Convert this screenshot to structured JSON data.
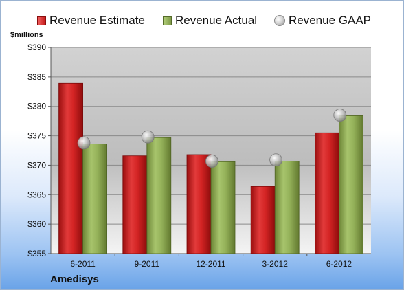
{
  "legend": {
    "estimate": "Revenue Estimate",
    "actual": "Revenue Actual",
    "gaap": "Revenue GAAP"
  },
  "units_label": "$millions",
  "company": "Amedisys",
  "colors": {
    "estimate": "#c41a1a",
    "actual": "#8aa54f",
    "gaap": "#bdbdbd"
  },
  "chart_data": {
    "type": "bar",
    "categories": [
      "6-2011",
      "9-2011",
      "12-2011",
      "3-2012",
      "6-2012"
    ],
    "series": [
      {
        "name": "Revenue Estimate",
        "kind": "bar",
        "values": [
          383.9,
          371.6,
          371.8,
          366.4,
          375.5
        ]
      },
      {
        "name": "Revenue Actual",
        "kind": "bar",
        "values": [
          373.6,
          374.7,
          370.6,
          370.7,
          378.4
        ]
      },
      {
        "name": "Revenue GAAP",
        "kind": "marker",
        "values": [
          373.8,
          374.8,
          370.7,
          370.9,
          378.5
        ]
      }
    ],
    "ylabel": "$millions",
    "ylim": [
      355,
      390
    ],
    "yticks": [
      "$355",
      "$360",
      "$365",
      "$370",
      "$375",
      "$380",
      "$385",
      "$390"
    ],
    "ytick_values": [
      355,
      360,
      365,
      370,
      375,
      380,
      385,
      390
    ],
    "grid": true,
    "legend_position": "top"
  }
}
